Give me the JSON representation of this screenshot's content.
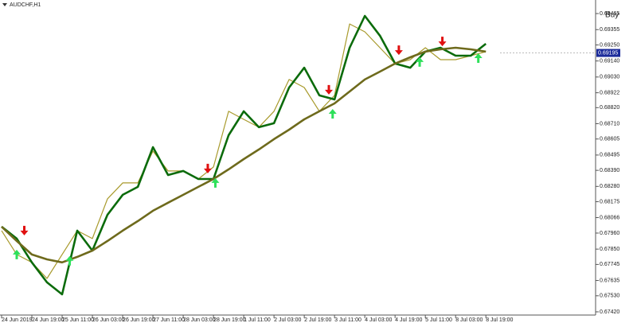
{
  "chart_data": {
    "type": "line",
    "title": "AUDCHF,H1",
    "signal_text": "Buy",
    "signal_color": "#1a8a1a",
    "x": [
      0,
      8,
      16,
      24,
      32,
      40,
      48,
      56,
      64,
      72,
      80,
      88,
      96,
      104,
      112,
      120,
      128,
      136,
      144,
      152,
      160,
      168,
      176,
      184,
      192,
      200,
      208,
      216,
      224,
      232,
      240,
      248,
      256
    ],
    "series": [
      {
        "color": "#a89a2c",
        "width": 1.2,
        "values": [
          0.67977,
          0.67813,
          0.67759,
          0.67649,
          0.67813,
          0.67977,
          0.67922,
          0.68195,
          0.68304,
          0.68304,
          0.68522,
          0.68386,
          0.68386,
          0.68331,
          0.68413,
          0.68795,
          0.6874,
          0.68686,
          0.68795,
          0.69013,
          0.68958,
          0.68795,
          0.68904,
          0.69394,
          0.6934,
          0.69231,
          0.69122,
          0.69149,
          0.69231,
          0.69149,
          0.69149,
          0.69176,
          0.69204
        ]
      },
      {
        "color": "#0b6b0b",
        "width": 2.6,
        "values": [
          0.68004,
          0.67922,
          0.67759,
          0.67622,
          0.6754,
          0.67977,
          0.6784,
          0.68086,
          0.68222,
          0.68277,
          0.68549,
          0.68358,
          0.68386,
          0.68331,
          0.68331,
          0.68631,
          0.68795,
          0.68686,
          0.68713,
          0.68958,
          0.69094,
          0.68904,
          0.68876,
          0.69231,
          0.69449,
          0.69313,
          0.69122,
          0.69094,
          0.69204,
          0.69231,
          0.69176,
          0.69176,
          0.69258
        ]
      },
      {
        "color": "#6e6a1c",
        "width": 2.6,
        "values": [
          0.68004,
          0.67906,
          0.67813,
          0.6778,
          0.67759,
          0.67797,
          0.6784,
          0.67906,
          0.67977,
          0.68042,
          0.68113,
          0.68168,
          0.68222,
          0.68277,
          0.68331,
          0.68397,
          0.68467,
          0.68533,
          0.68604,
          0.68669,
          0.6874,
          0.68795,
          0.68849,
          0.68931,
          0.69013,
          0.69067,
          0.69122,
          0.69165,
          0.69204,
          0.6922,
          0.69231,
          0.6922,
          0.69204
        ]
      }
    ],
    "markers": [
      {
        "direction": "down",
        "color": "#e01010",
        "x": [
          12,
          109,
          173,
          210,
          233
        ],
        "values": [
          0.67977,
          0.68402,
          0.68942,
          0.69214,
          0.69274
        ]
      },
      {
        "direction": "up",
        "color": "#2ee05a",
        "x": [
          8,
          36,
          113,
          175,
          221,
          252
        ],
        "values": [
          0.67813,
          0.6777,
          0.68304,
          0.68778,
          0.69133,
          0.6916
        ]
      }
    ],
    "current_price": {
      "value": 0.69195,
      "label": "0.69195"
    },
    "xlim": [
      0,
      314
    ],
    "ylim": [
      0.67398,
      0.69558
    ],
    "xticks": [
      {
        "value": 0,
        "label": "24 Jun 2019"
      },
      {
        "value": 16,
        "label": "24 Jun 19:00"
      },
      {
        "value": 32,
        "label": "25 Jun 11:00"
      },
      {
        "value": 48,
        "label": "26 Jun 03:00"
      },
      {
        "value": 64,
        "label": "26 Jun 19:00"
      },
      {
        "value": 80,
        "label": "27 Jun 11:00"
      },
      {
        "value": 96,
        "label": "28 Jun 03:00"
      },
      {
        "value": 112,
        "label": "28 Jun 19:00"
      },
      {
        "value": 128,
        "label": "1 Jul 11:00"
      },
      {
        "value": 144,
        "label": "2 Jul 03:00"
      },
      {
        "value": 160,
        "label": "2 Jul 19:00"
      },
      {
        "value": 176,
        "label": "3 Jul 11:00"
      },
      {
        "value": 192,
        "label": "4 Jul 03:00"
      },
      {
        "value": 208,
        "label": "4 Jul 19:00"
      },
      {
        "value": 224,
        "label": "5 Jul 11:00"
      },
      {
        "value": 240,
        "label": "8 Jul 03:00"
      },
      {
        "value": 256,
        "label": "8 Jul 19:00"
      }
    ],
    "yticks": [
      {
        "value": 0.69465,
        "label": "0.69465"
      },
      {
        "value": 0.69355,
        "label": "0.69355"
      },
      {
        "value": 0.6925,
        "label": "0.69250"
      },
      {
        "value": 0.6914,
        "label": "0.69140"
      },
      {
        "value": 0.6903,
        "label": "0.69030"
      },
      {
        "value": 0.68922,
        "label": "0.68922"
      },
      {
        "value": 0.6882,
        "label": "0.68820"
      },
      {
        "value": 0.6871,
        "label": "0.68710"
      },
      {
        "value": 0.68605,
        "label": "0.68605"
      },
      {
        "value": 0.68495,
        "label": "0.68495"
      },
      {
        "value": 0.6839,
        "label": "0.68390"
      },
      {
        "value": 0.6828,
        "label": "0.68280"
      },
      {
        "value": 0.68175,
        "label": "0.68175"
      },
      {
        "value": 0.68066,
        "label": "0.68066"
      },
      {
        "value": 0.6796,
        "label": "0.67960"
      },
      {
        "value": 0.6785,
        "label": "0.67850"
      },
      {
        "value": 0.67745,
        "label": "0.67745"
      },
      {
        "value": 0.67635,
        "label": "0.67635"
      },
      {
        "value": 0.6753,
        "label": "0.67530"
      },
      {
        "value": 0.6742,
        "label": "0.67420"
      }
    ]
  }
}
